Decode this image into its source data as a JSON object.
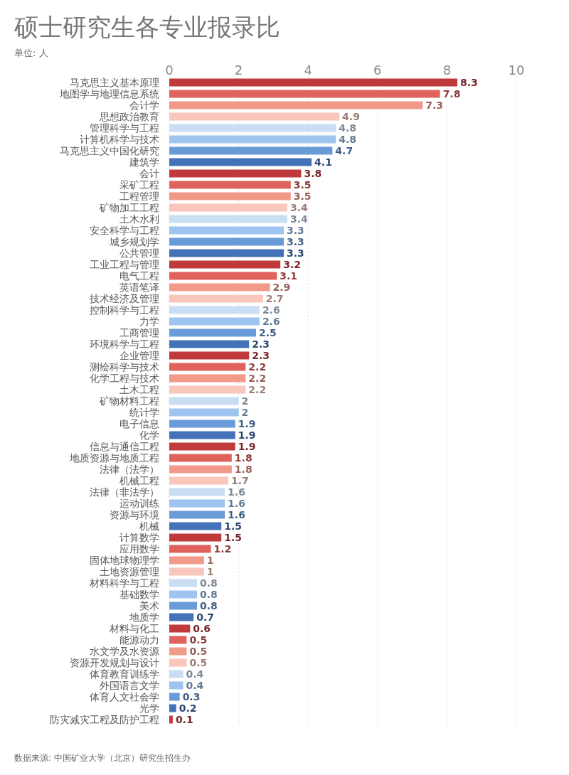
{
  "chart_data": {
    "type": "bar",
    "orientation": "horizontal",
    "title": "硕士研究生各专业报录比",
    "subtitle": "单位: 人",
    "categories": [
      "马克思主义基本原理",
      "地图学与地理信息系统",
      "会计学",
      "思想政治教育",
      "管理科学与工程",
      "计算机科学与技术",
      "马克思主义中国化研究",
      "建筑学",
      "会计",
      "采矿工程",
      "工程管理",
      "矿物加工工程",
      "土木水利",
      "安全科学与工程",
      "城乡规划学",
      "公共管理",
      "工业工程与管理",
      "电气工程",
      "英语笔译",
      "技术经济及管理",
      "控制科学与工程",
      "力学",
      "工商管理",
      "环境科学与工程",
      "企业管理",
      "测绘科学与技术",
      "化学工程与技术",
      "土木工程",
      "矿物材料工程",
      "统计学",
      "电子信息",
      "化学",
      "信息与通信工程",
      "地质资源与地质工程",
      "法律（法学）",
      "机械工程",
      "法律（非法学）",
      "运动训练",
      "资源与环境",
      "机械",
      "计算数学",
      "应用数学",
      "固体地球物理学",
      "土地资源管理",
      "材料科学与工程",
      "基础数学",
      "美术",
      "地质学",
      "材料与化工",
      "能源动力",
      "水文学及水资源",
      "资源开发规划与设计",
      "体育教育训练学",
      "外国语言文学",
      "体育人文社会学",
      "光学",
      "防灾减灾工程及防护工程"
    ],
    "values": [
      8.3,
      7.8,
      7.3,
      4.9,
      4.8,
      4.8,
      4.7,
      4.1,
      3.8,
      3.5,
      3.5,
      3.4,
      3.4,
      3.3,
      3.3,
      3.3,
      3.2,
      3.1,
      2.9,
      2.7,
      2.6,
      2.6,
      2.5,
      2.3,
      2.3,
      2.2,
      2.2,
      2.2,
      2,
      2,
      1.9,
      1.9,
      1.9,
      1.8,
      1.8,
      1.7,
      1.6,
      1.6,
      1.6,
      1.5,
      1.5,
      1.2,
      1,
      1,
      0.8,
      0.8,
      0.8,
      0.7,
      0.6,
      0.5,
      0.5,
      0.5,
      0.4,
      0.4,
      0.3,
      0.2,
      0.1
    ],
    "colors": [
      "#c0393b",
      "#e0625c",
      "#f29a8a",
      "#f8c6bb",
      "#c9ddf3",
      "#9ec4ef",
      "#6a9bd9",
      "#4472b8",
      "#c0393b",
      "#e0625c",
      "#f29a8a",
      "#f8c6bb",
      "#c9ddf3",
      "#9ec4ef",
      "#6a9bd9",
      "#4472b8",
      "#c0393b",
      "#e0625c",
      "#f29a8a",
      "#f8c6bb",
      "#c9ddf3",
      "#9ec4ef",
      "#6a9bd9",
      "#4472b8",
      "#c0393b",
      "#e0625c",
      "#f29a8a",
      "#f8c6bb",
      "#c9ddf3",
      "#9ec4ef",
      "#6a9bd9",
      "#4472b8",
      "#c0393b",
      "#e0625c",
      "#f29a8a",
      "#f8c6bb",
      "#c9ddf3",
      "#9ec4ef",
      "#6a9bd9",
      "#4472b8",
      "#c0393b",
      "#e0625c",
      "#f29a8a",
      "#f8c6bb",
      "#c9ddf3",
      "#9ec4ef",
      "#6a9bd9",
      "#4472b8",
      "#c0393b",
      "#e0625c",
      "#f29a8a",
      "#f8c6bb",
      "#c9ddf3",
      "#9ec4ef",
      "#6a9bd9",
      "#4472b8",
      "#c0393b"
    ],
    "xlim": [
      0,
      10
    ],
    "xticks": [
      0,
      2,
      4,
      6,
      8,
      10
    ],
    "grid": "x",
    "data_labels": true,
    "annotations": [
      "数据来源: 中国矿业大学（北京）研究生招生办"
    ]
  }
}
